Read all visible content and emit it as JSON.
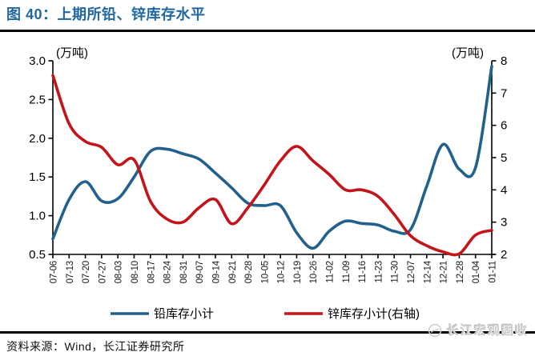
{
  "report": {
    "title": "图 40：上期所铅、锌库存水平",
    "source": "资料来源：Wind，长江证券研究所",
    "watermark": "长江宏观固收"
  },
  "colors": {
    "title_blue": "#2268A0",
    "axis_black": "#000000",
    "lead_blue": "#21618C",
    "zinc_red": "#C3141A",
    "watermark_gray": "#CFCFCF"
  },
  "chart_data": {
    "type": "line",
    "title": "上期所铅、锌库存水平",
    "grid": false,
    "legend_position": "bottom",
    "x_labels": [
      "07-06",
      "07-13",
      "07-20",
      "07-27",
      "08-03",
      "08-10",
      "08-17",
      "08-24",
      "08-31",
      "09-07",
      "09-14",
      "09-21",
      "09-28",
      "10-05",
      "10-12",
      "10-19",
      "10-26",
      "11-02",
      "11-09",
      "11-16",
      "11-23",
      "11-30",
      "12-07",
      "12-14",
      "12-21",
      "12-28",
      "01-04",
      "01-11"
    ],
    "left_axis": {
      "unit": "(万吨)",
      "min": 0.5,
      "max": 3.0,
      "ticks": [
        "3.0",
        "2.5",
        "2.0",
        "1.5",
        "1.0",
        "0.5"
      ]
    },
    "right_axis": {
      "unit": "(万吨)",
      "min": 2,
      "max": 8,
      "ticks": [
        "8",
        "7",
        "6",
        "5",
        "4",
        "3",
        "2"
      ]
    },
    "series": [
      {
        "id": "lead",
        "name": "铅库存小计",
        "axis": "left",
        "color": "#21618C",
        "values": [
          0.7,
          1.21,
          1.44,
          1.19,
          1.22,
          1.5,
          1.83,
          1.86,
          1.8,
          1.73,
          1.55,
          1.36,
          1.16,
          1.13,
          1.13,
          0.78,
          0.58,
          0.8,
          0.93,
          0.9,
          0.88,
          0.8,
          0.82,
          1.38,
          1.92,
          1.6,
          1.62,
          2.93
        ]
      },
      {
        "id": "zinc",
        "name": "锌库存小计(右轴)",
        "axis": "right",
        "color": "#C3141A",
        "values": [
          7.55,
          6.05,
          5.5,
          5.32,
          4.78,
          4.93,
          3.65,
          3.1,
          3.0,
          3.45,
          3.7,
          2.95,
          3.45,
          4.15,
          4.9,
          5.35,
          4.9,
          4.48,
          4.0,
          4.0,
          3.8,
          3.24,
          2.58,
          2.27,
          2.08,
          2.02,
          2.6,
          2.75
        ]
      }
    ]
  }
}
